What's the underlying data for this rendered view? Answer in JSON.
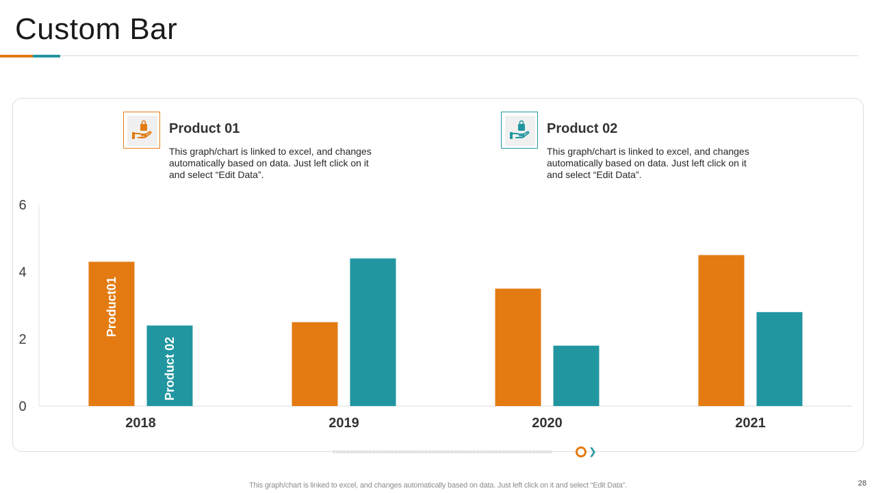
{
  "page": {
    "title": "Custom Bar",
    "footer_note": "This graph/chart is linked to excel,  and changes automatically based on data. Just left click on it and select “Edit Data”.",
    "page_number": "28"
  },
  "legend": [
    {
      "title": "Product 01",
      "description": "This graph/chart is linked to excel, and changes automatically based on data. Just left click on it and select “Edit Data”.",
      "icon": "hand-holding-bag-icon",
      "color": "#e37b12"
    },
    {
      "title": "Product 02",
      "description": "This graph/chart is linked to excel, and changes automatically based on data. Just left click on it and select “Edit Data”.",
      "icon": "hand-holding-bag-icon",
      "color": "#2196a0"
    }
  ],
  "chart_data": {
    "type": "bar",
    "categories": [
      "2018",
      "2019",
      "2020",
      "2021"
    ],
    "series": [
      {
        "name": "Product01",
        "color": "#e37b12",
        "values": [
          4.3,
          2.5,
          3.5,
          4.5
        ]
      },
      {
        "name": "Product 02",
        "color": "#2196a0",
        "values": [
          2.4,
          4.4,
          1.8,
          2.8
        ]
      }
    ],
    "ylim": [
      0,
      6
    ],
    "yticks": [
      "0",
      "2",
      "4",
      "6"
    ],
    "series_labels_in_first_category": true,
    "title": "",
    "xlabel": "",
    "ylabel": ""
  }
}
